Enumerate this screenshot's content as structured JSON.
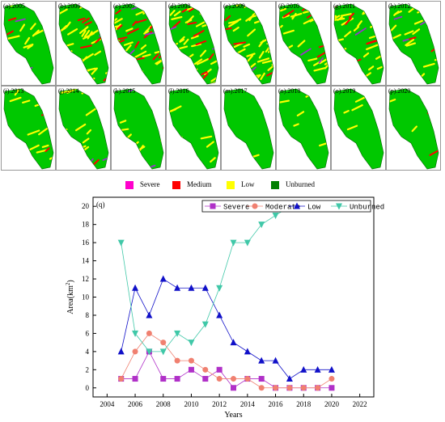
{
  "maps": {
    "panels": [
      {
        "label": "(a).2005",
        "year": 2005,
        "severe": 1,
        "moderate": 1,
        "low": 4,
        "unburned": 16
      },
      {
        "label": "(b).2006",
        "year": 2006,
        "severe": 1,
        "moderate": 4,
        "low": 11,
        "unburned": 6
      },
      {
        "label": "(c).2007",
        "year": 2007,
        "severe": 4,
        "moderate": 6,
        "low": 8,
        "unburned": 4
      },
      {
        "label": "(d).2008",
        "year": 2008,
        "severe": 1,
        "moderate": 5,
        "low": 12,
        "unburned": 4
      },
      {
        "label": "(e).2009",
        "year": 2009,
        "severe": 1,
        "moderate": 3,
        "low": 11,
        "unburned": 6
      },
      {
        "label": "(f).2010",
        "year": 2010,
        "severe": 2,
        "moderate": 3,
        "low": 11,
        "unburned": 5
      },
      {
        "label": "(g).2011",
        "year": 2011,
        "severe": 1,
        "moderate": 2,
        "low": 11,
        "unburned": 7
      },
      {
        "label": "(h).2012",
        "year": 2012,
        "severe": 2,
        "moderate": 1,
        "low": 8,
        "unburned": 11
      },
      {
        "label": "(i).2013",
        "year": 2013,
        "severe": 0,
        "moderate": 1,
        "low": 5,
        "unburned": 16
      },
      {
        "label": "(j).2014",
        "year": 2014,
        "severe": 1,
        "moderate": 1,
        "low": 4,
        "unburned": 16
      },
      {
        "label": "(k).2015",
        "year": 2015,
        "severe": 1,
        "moderate": 0,
        "low": 3,
        "unburned": 18
      },
      {
        "label": "(l).2016",
        "year": 2016,
        "severe": 0,
        "moderate": 0,
        "low": 3,
        "unburned": 19
      },
      {
        "label": "(m).2017",
        "year": 2017,
        "severe": 0,
        "moderate": 0,
        "low": 1,
        "unburned": 20
      },
      {
        "label": "(n).2018",
        "year": 2018,
        "severe": 0,
        "moderate": 0,
        "low": 2,
        "unburned": 20
      },
      {
        "label": "(o).2019",
        "year": 2019,
        "severe": 0,
        "moderate": 0,
        "low": 2,
        "unburned": 20
      },
      {
        "label": "(p).2020",
        "year": 2020,
        "severe": 0,
        "moderate": 1,
        "low": 2,
        "unburned": 20
      }
    ],
    "legend": [
      {
        "label": "Severe",
        "color": "#ff00cc"
      },
      {
        "label": "Medium",
        "color": "#ff0000"
      },
      {
        "label": "Low",
        "color": "#ffff00"
      },
      {
        "label": "Unburned",
        "color": "#008000"
      }
    ],
    "map_colors": {
      "base": "#00c800",
      "low": "#ffff00",
      "medium": "#ff0000",
      "severe": "#9933cc"
    }
  },
  "chart_data": {
    "type": "line",
    "panel_label": "(q)",
    "xlabel": "Years",
    "ylabel": "Area(km",
    "ylabel_sup": "2",
    "ylabel_close": ")",
    "xlim": [
      2003,
      2023
    ],
    "ylim": [
      -1,
      21
    ],
    "xticks": [
      2004,
      2006,
      2008,
      2010,
      2012,
      2014,
      2016,
      2018,
      2020,
      2022
    ],
    "yticks": [
      0,
      2,
      4,
      6,
      8,
      10,
      12,
      14,
      16,
      18,
      20
    ],
    "x": [
      2005,
      2006,
      2007,
      2008,
      2009,
      2010,
      2011,
      2012,
      2013,
      2014,
      2015,
      2016,
      2017,
      2018,
      2019,
      2020
    ],
    "legend_position": "top-right",
    "series": [
      {
        "name": "Severe",
        "color": "#b030c8",
        "marker": "square",
        "values": [
          1,
          1,
          4,
          1,
          1,
          2,
          1,
          2,
          0,
          1,
          1,
          0,
          0,
          0,
          0,
          0
        ]
      },
      {
        "name": "Moderate",
        "color": "#f08070",
        "marker": "circle",
        "values": [
          1,
          4,
          6,
          5,
          3,
          3,
          2,
          1,
          1,
          1,
          0,
          0,
          0,
          0,
          0,
          1
        ]
      },
      {
        "name": "Low",
        "color": "#1010c8",
        "marker": "triangle-up",
        "values": [
          4,
          11,
          8,
          12,
          11,
          11,
          11,
          8,
          5,
          4,
          3,
          3,
          1,
          2,
          2,
          2
        ]
      },
      {
        "name": "Unburned",
        "color": "#40c8a8",
        "marker": "triangle-down",
        "values": [
          16,
          6,
          4,
          4,
          6,
          5,
          7,
          11,
          16,
          16,
          18,
          19,
          20,
          20,
          20,
          20
        ]
      }
    ]
  }
}
